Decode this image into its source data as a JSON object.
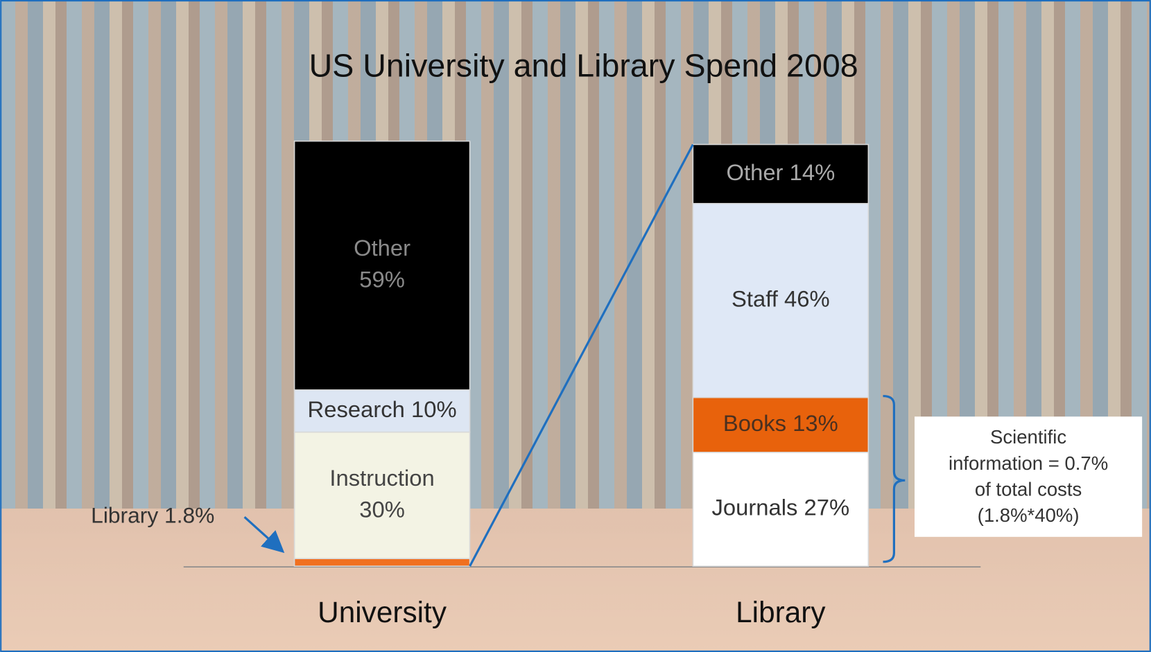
{
  "chart_data": {
    "type": "stacked-bar",
    "title": "US University and Library Spend 2008",
    "ylim": [
      0,
      100
    ],
    "stacks": [
      {
        "category": "University",
        "segments": [
          {
            "value": 1.8,
            "color": "#f07020",
            "label_lines": [
              "Library 1.8%"
            ],
            "label_outside": true
          },
          {
            "value": 30,
            "color": "#f3f3e4",
            "label_lines": [
              "Instruction",
              "30%"
            ],
            "text_color": "#444444"
          },
          {
            "value": 10,
            "color": "#dde6f3",
            "label_lines": [
              "Research 10%"
            ],
            "text_color": "#333333"
          },
          {
            "value": 59,
            "color": "#000000",
            "label_lines": [
              "Other",
              "59%"
            ],
            "text_color": "#8a8a8a"
          }
        ]
      },
      {
        "category": "Library",
        "segments": [
          {
            "value": 27,
            "color": "#ffffff",
            "label_lines": [
              "Journals 27%"
            ],
            "text_color": "#333333"
          },
          {
            "value": 13,
            "color": "#e8620c",
            "label_lines": [
              "Books 13%"
            ],
            "text_color": "#4a3020"
          },
          {
            "value": 46,
            "color": "#dfe8f6",
            "label_lines": [
              "Staff 46%"
            ],
            "text_color": "#333333"
          },
          {
            "value": 14,
            "color": "#000000",
            "label_lines": [
              "Other 14%"
            ],
            "text_color": "#aaaaaa"
          }
        ]
      }
    ],
    "annotation_lines": [
      "Scientific",
      "information = 0.7%",
      "of total costs",
      "(1.8%*40%)"
    ],
    "zoom_line_color": "#1f6fbf"
  }
}
